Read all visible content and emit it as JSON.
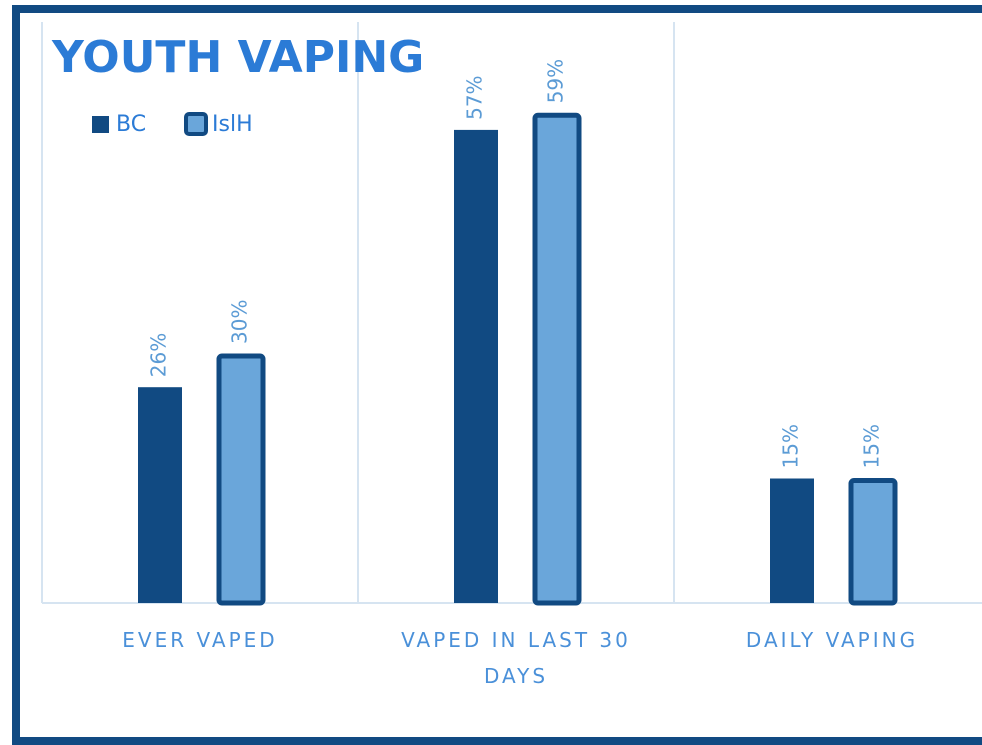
{
  "chart_data": {
    "type": "bar",
    "title": "YOUTH VAPING",
    "categories": [
      "EVER VAPED",
      "VAPED IN LAST 30 DAYS",
      "DAILY VAPING"
    ],
    "series": [
      {
        "name": "BC",
        "color": "#114a82",
        "values": [
          26,
          57,
          15
        ],
        "value_labels": [
          "26%",
          "57%",
          "15%"
        ]
      },
      {
        "name": "IslH",
        "color": "#6aa6da",
        "values": [
          30,
          59,
          15
        ],
        "value_labels": [
          "30%",
          "59%",
          "15%"
        ]
      }
    ],
    "ylim": [
      0,
      70
    ],
    "legend": "top-left"
  }
}
